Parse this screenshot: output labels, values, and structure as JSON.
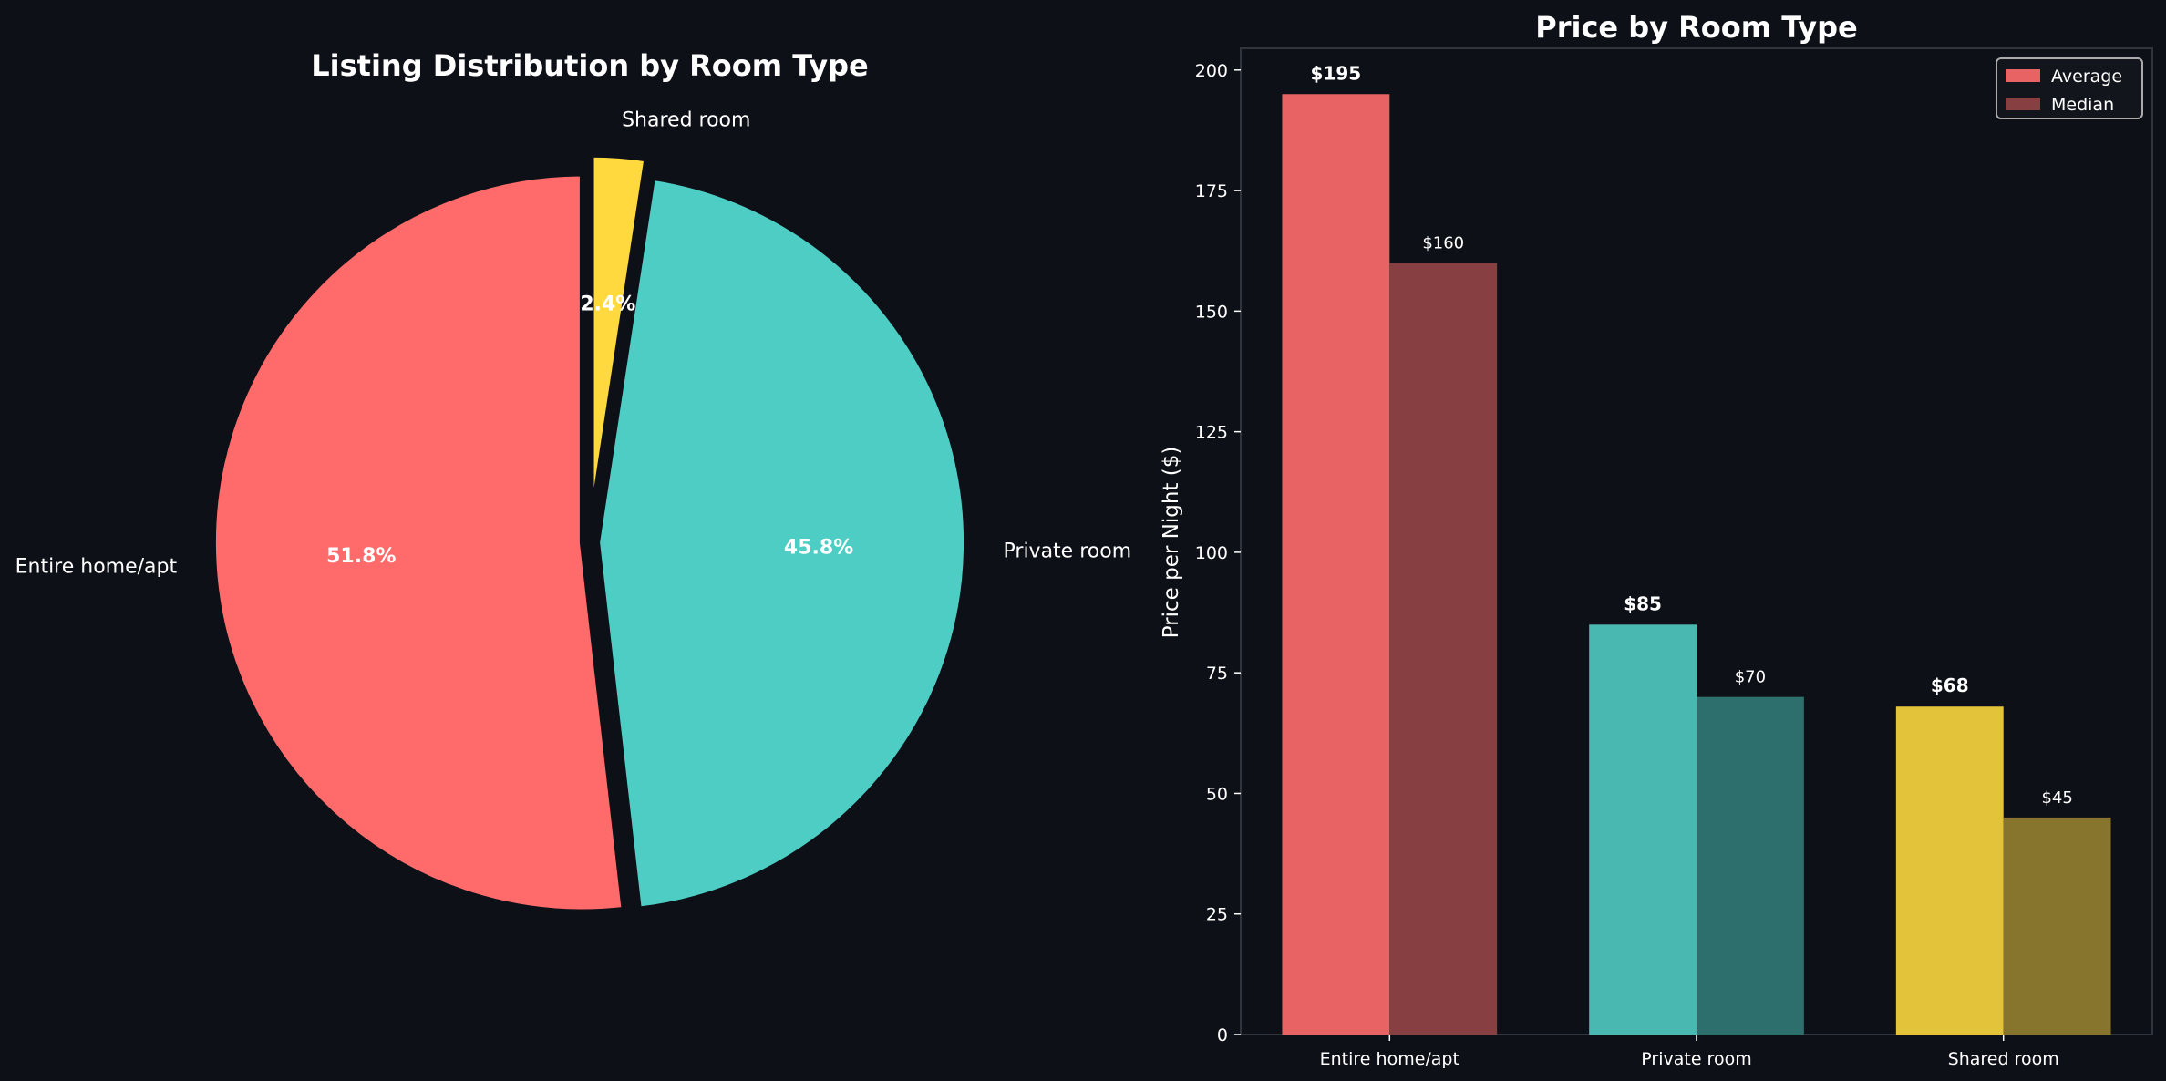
{
  "background": "#0d1017",
  "chart_data": [
    {
      "type": "pie",
      "title": "Listing Distribution by Room Type",
      "labels": [
        "Entire home/apt",
        "Private room",
        "Shared room"
      ],
      "values": [
        51.8,
        45.8,
        2.4
      ],
      "percent_labels": [
        "51.8%",
        "45.8%",
        "2.4%"
      ],
      "colors": [
        "#FF6B6B",
        "#4ECDC4",
        "#FFD93D"
      ],
      "start_angle": 90,
      "direction": "counterclockwise",
      "exploded": [
        true,
        true,
        true
      ]
    },
    {
      "type": "bar",
      "title": "Price by Room Type",
      "xlabel": "",
      "ylabel": "Price per Night ($)",
      "categories": [
        "Entire home/apt",
        "Private room",
        "Shared room"
      ],
      "ylim": [
        0,
        204.5
      ],
      "yticks": [
        0,
        25,
        50,
        75,
        100,
        125,
        150,
        175,
        200
      ],
      "grid": false,
      "legend": "top-right",
      "series": [
        {
          "name": "Average",
          "values": [
            195,
            85,
            68
          ],
          "labels": [
            "$195",
            "$85",
            "$68"
          ],
          "colors": [
            "#E86464",
            "#48B8B1",
            "#E3C33A"
          ],
          "legend_color": "#E86464"
        },
        {
          "name": "Median",
          "values": [
            160,
            70,
            45
          ],
          "labels": [
            "$160",
            "$70",
            "$45"
          ],
          "colors": [
            "#873F42",
            "#2D6F6C",
            "#88752D"
          ],
          "legend_color": "#873F42"
        }
      ]
    }
  ]
}
